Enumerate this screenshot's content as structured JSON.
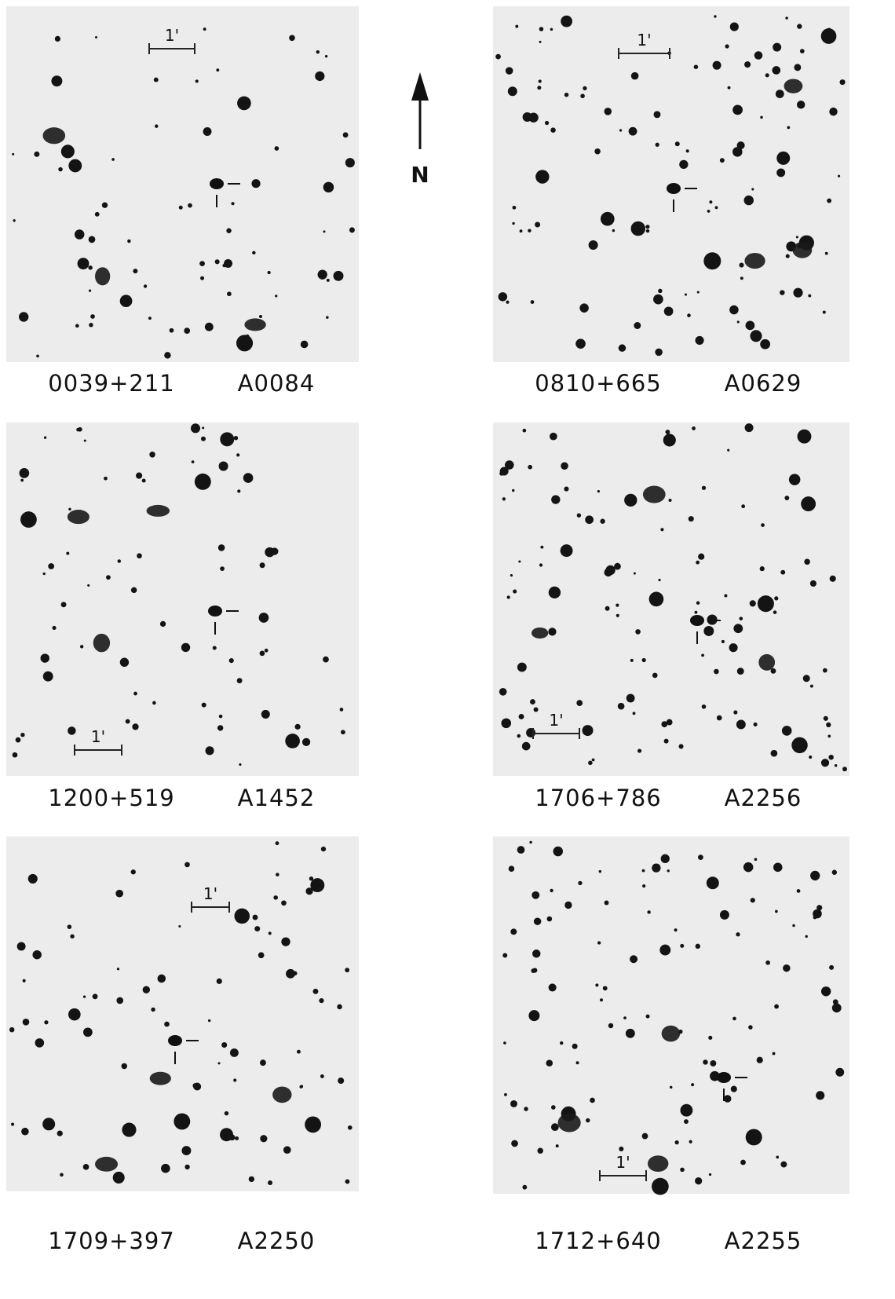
{
  "figure": {
    "north_label": "N",
    "panels": [
      {
        "id": "0039+211",
        "cluster": "A0084",
        "scale_label": "1'"
      },
      {
        "id": "0810+665",
        "cluster": "A0629",
        "scale_label": "1'"
      },
      {
        "id": "1200+519",
        "cluster": "A1452",
        "scale_label": "1'"
      },
      {
        "id": "1706+786",
        "cluster": "A2256",
        "scale_label": "1'"
      },
      {
        "id": "1709+397",
        "cluster": "A2250",
        "scale_label": "1'"
      },
      {
        "id": "1712+640",
        "cluster": "A2255",
        "scale_label": "1'"
      }
    ]
  }
}
